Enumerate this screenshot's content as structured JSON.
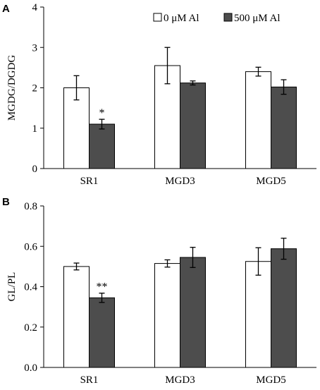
{
  "chart_data": [
    {
      "type": "bar",
      "panel": "A",
      "categories": [
        "SR1",
        "MGD3",
        "MGD5"
      ],
      "ylabel": "MGDG/DGDG",
      "ylim": [
        0,
        4
      ],
      "yticks": [
        "0",
        "1",
        "2",
        "3",
        "4"
      ],
      "legend": "top-right",
      "series": [
        {
          "name": "0 μM Al",
          "color": "#ffffff",
          "values": [
            2.0,
            2.55,
            2.4
          ],
          "errors": [
            0.3,
            0.45,
            0.11
          ]
        },
        {
          "name": "500 μM Al",
          "color": "#4d4d4d",
          "values": [
            1.1,
            2.12,
            2.02
          ],
          "errors": [
            0.12,
            0.05,
            0.18
          ]
        }
      ],
      "annotations": [
        {
          "category": "SR1",
          "series": 1,
          "text": "*"
        }
      ]
    },
    {
      "type": "bar",
      "panel": "B",
      "categories": [
        "SR1",
        "MGD3",
        "MGD5"
      ],
      "ylabel": "GL/PL",
      "ylim": [
        0,
        0.8
      ],
      "yticks": [
        "0.0",
        "0.2",
        "0.4",
        "0.6",
        "0.8"
      ],
      "series": [
        {
          "name": "0 μM Al",
          "color": "#ffffff",
          "values": [
            0.5,
            0.515,
            0.525
          ],
          "errors": [
            0.017,
            0.018,
            0.068
          ]
        },
        {
          "name": "500 μM Al",
          "color": "#4d4d4d",
          "values": [
            0.345,
            0.545,
            0.588
          ],
          "errors": [
            0.023,
            0.05,
            0.052
          ]
        }
      ],
      "annotations": [
        {
          "category": "SR1",
          "series": 1,
          "text": "**"
        }
      ]
    }
  ]
}
